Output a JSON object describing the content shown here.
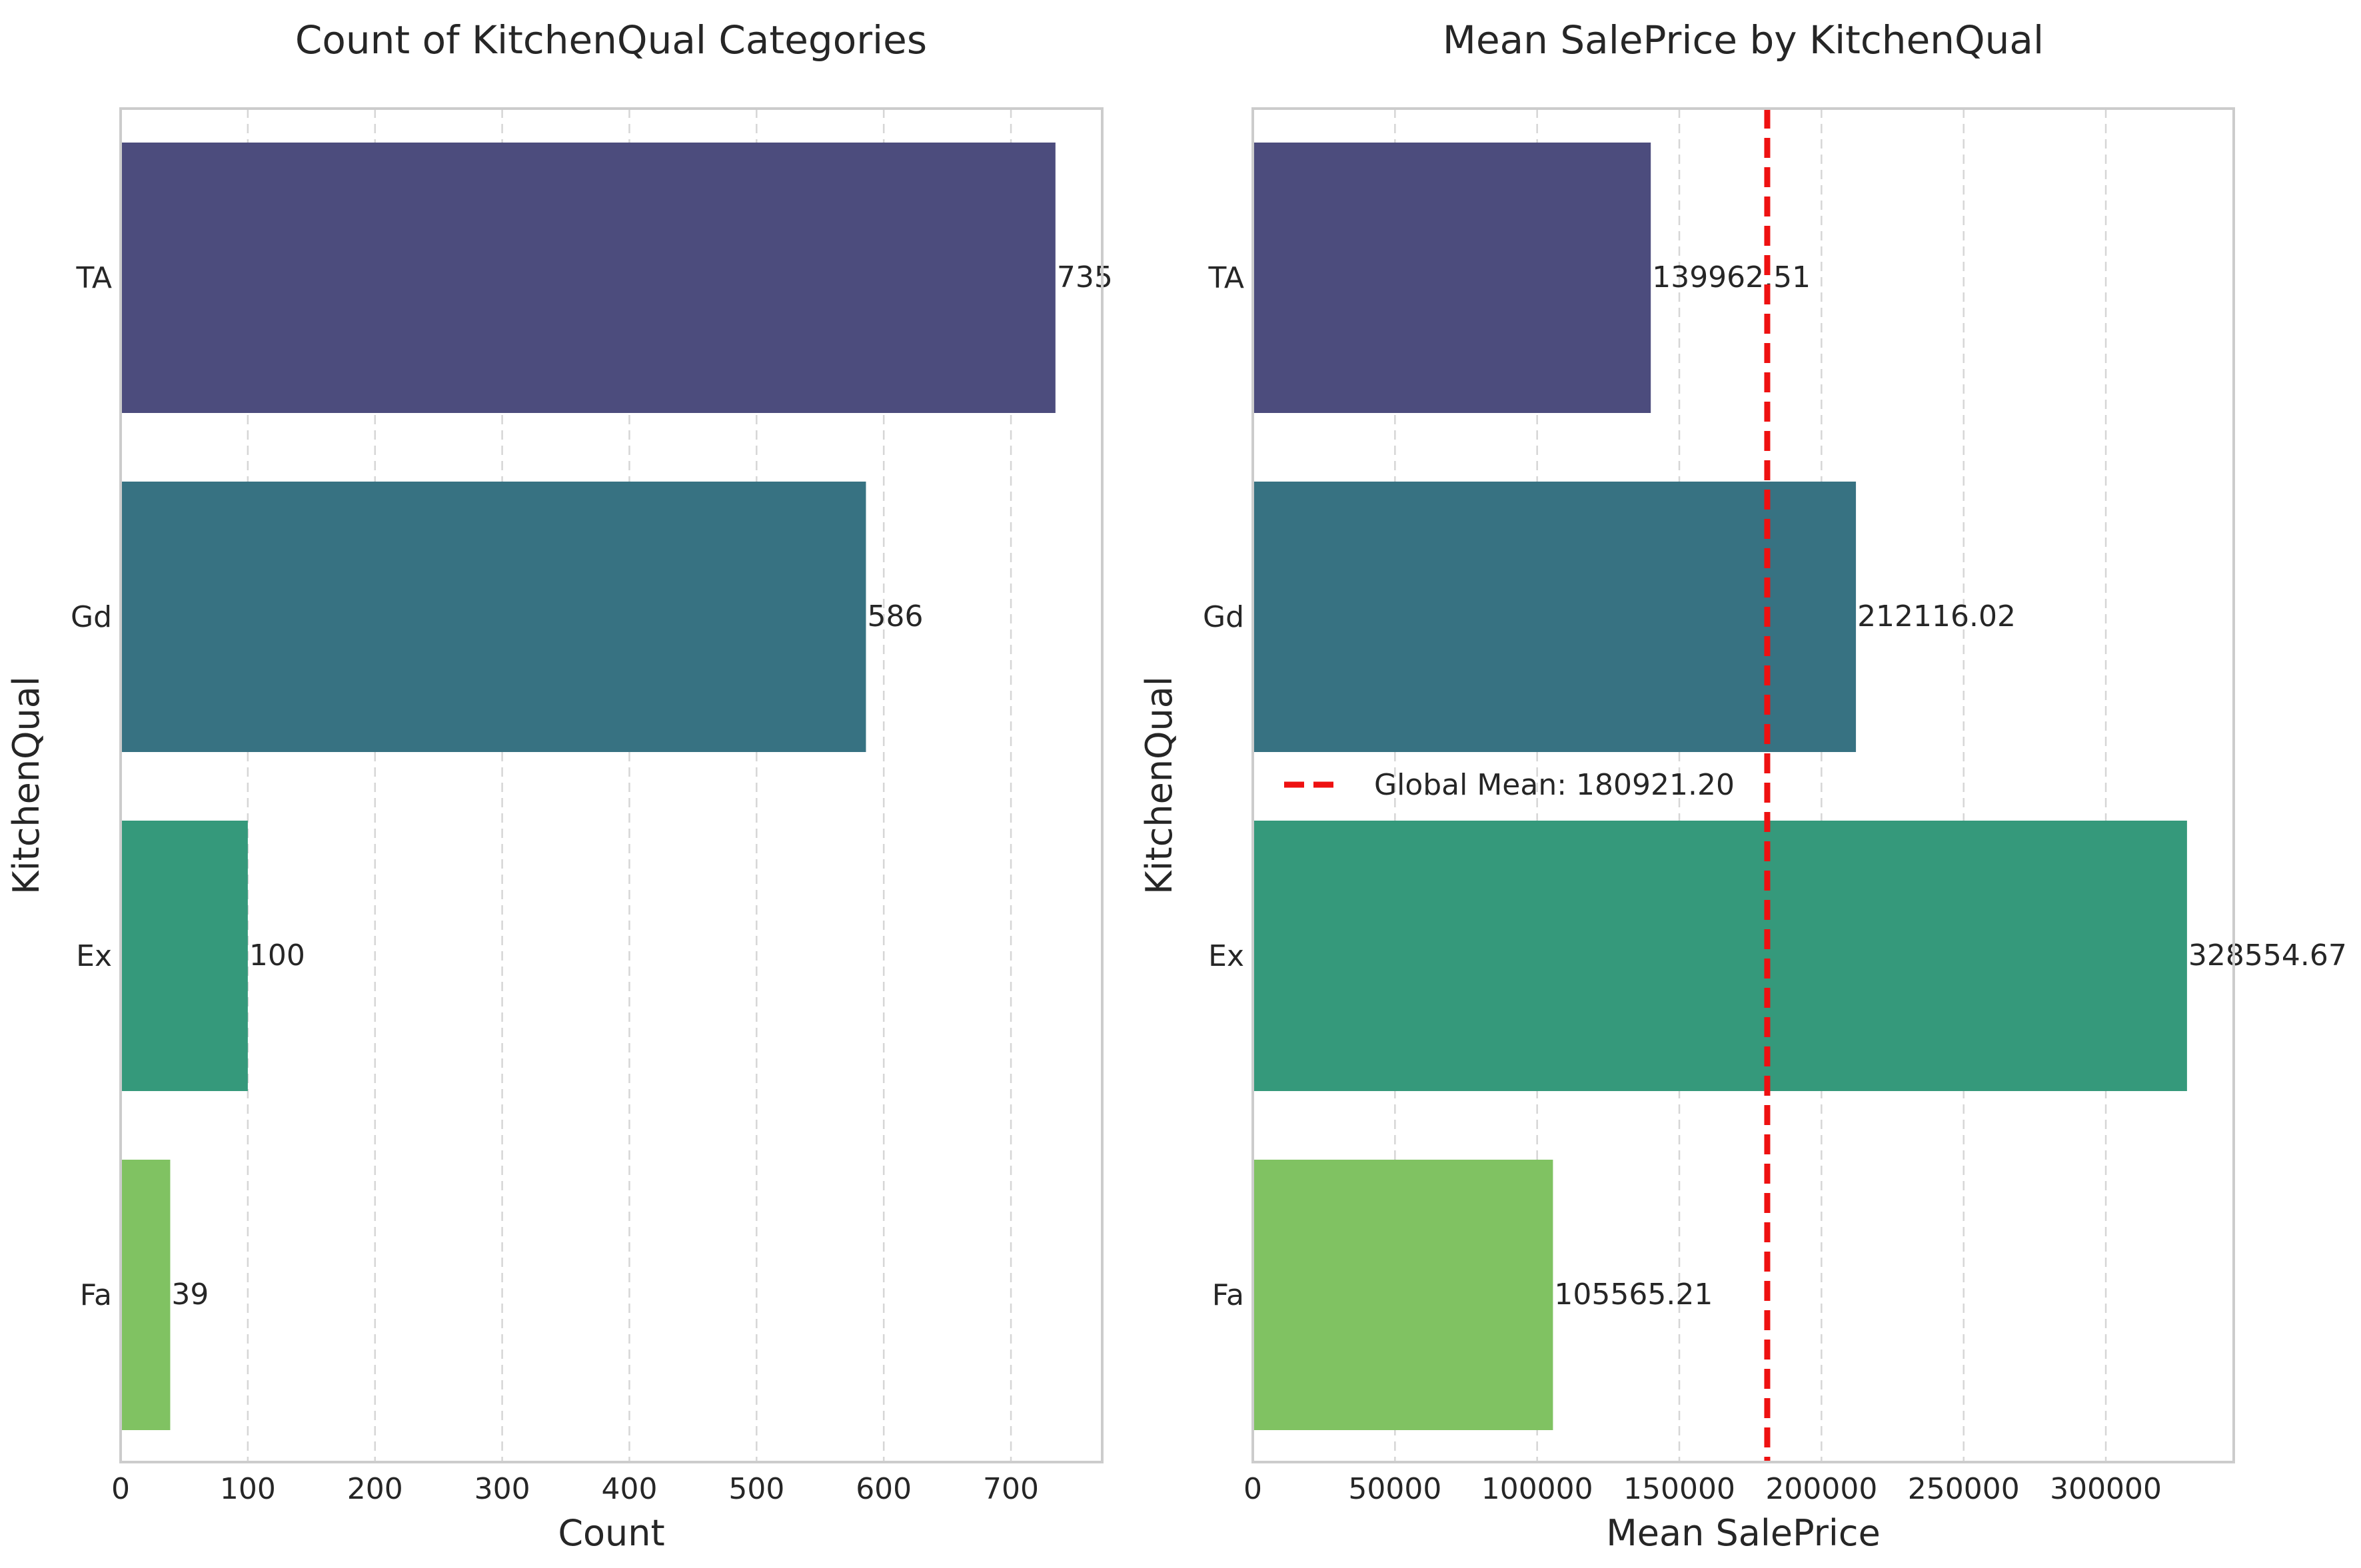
{
  "chart_data": [
    {
      "type": "bar",
      "orientation": "horizontal",
      "title": "Count of KitchenQual Categories",
      "xlabel": "Count",
      "ylabel": "KitchenQual",
      "categories": [
        "TA",
        "Gd",
        "Ex",
        "Fa"
      ],
      "values": [
        735,
        586,
        100,
        39
      ],
      "value_labels": [
        "735",
        "586",
        "100",
        "39"
      ],
      "colors": [
        "#4c4c7d",
        "#377282",
        "#35997b",
        "#80c262"
      ],
      "xlim": [
        0,
        771.75
      ],
      "xticks": [
        0,
        100,
        200,
        300,
        400,
        500,
        600,
        700
      ],
      "xtick_labels": [
        "0",
        "100",
        "200",
        "300",
        "400",
        "500",
        "600",
        "700"
      ],
      "grid": "vertical-dashed"
    },
    {
      "type": "bar",
      "orientation": "horizontal",
      "title": "Mean SalePrice by KitchenQual",
      "xlabel": "Mean SalePrice",
      "ylabel": "KitchenQual",
      "categories": [
        "TA",
        "Gd",
        "Ex",
        "Fa"
      ],
      "values": [
        139962.51,
        212116.02,
        328554.67,
        105565.21
      ],
      "value_labels": [
        "139962.51",
        "212116.02",
        "328554.67",
        "105565.21"
      ],
      "colors": [
        "#4c4c7d",
        "#377282",
        "#35997b",
        "#80c262"
      ],
      "xlim": [
        0,
        344982.4
      ],
      "xticks": [
        0,
        50000,
        100000,
        150000,
        200000,
        250000,
        300000
      ],
      "xtick_labels": [
        "0",
        "50000",
        "100000",
        "150000",
        "200000",
        "250000",
        "300000"
      ],
      "grid": "vertical-dashed",
      "reference_line": {
        "value": 180921.2,
        "label": "Global Mean: 180921.20",
        "color": "#ee1111",
        "style": "dashed"
      },
      "legend_position": "center-left"
    }
  ]
}
